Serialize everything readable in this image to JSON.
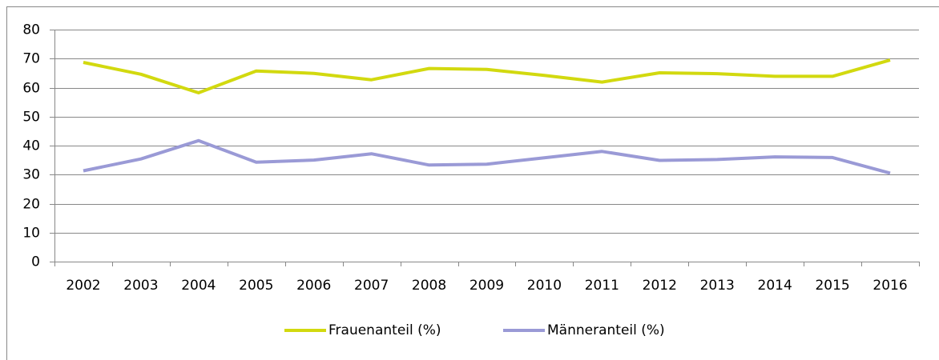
{
  "chart_data": {
    "type": "line",
    "categories": [
      "2002",
      "2003",
      "2004",
      "2005",
      "2006",
      "2007",
      "2008",
      "2009",
      "2010",
      "2011",
      "2012",
      "2013",
      "2014",
      "2015",
      "2016"
    ],
    "series": [
      {
        "name": "Frauenanteil (%)",
        "color": "#d2d90f",
        "values": [
          68.7,
          64.6,
          58.2,
          65.7,
          64.9,
          62.7,
          66.6,
          66.3,
          64.2,
          61.9,
          65.1,
          64.8,
          63.9,
          63.9,
          69.5
        ]
      },
      {
        "name": "Männeranteil (%)",
        "color": "#9a9ad6",
        "values": [
          31.3,
          35.4,
          41.7,
          34.3,
          35.0,
          37.2,
          33.3,
          33.6,
          35.8,
          38.0,
          34.9,
          35.2,
          36.1,
          35.9,
          30.5
        ]
      }
    ],
    "ylim": [
      0,
      80
    ],
    "yticks": [
      0,
      10,
      20,
      30,
      40,
      50,
      60,
      70,
      80
    ],
    "grid": true,
    "legend": "bottom"
  }
}
